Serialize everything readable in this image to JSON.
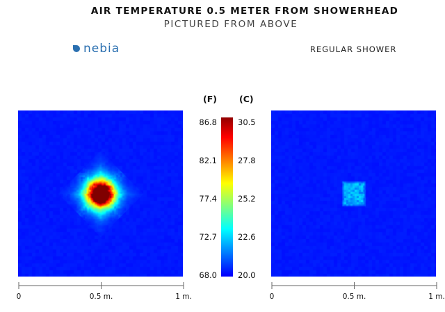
{
  "title": "AIR TEMPERATURE 0.5 METER FROM SHOWERHEAD",
  "subtitle": "PICTURED FROM ABOVE",
  "brand": {
    "name": "nebia",
    "color": "#2a6fb0"
  },
  "mode_label": "REGULAR SHOWER",
  "chart_data": [
    {
      "type": "heatmap",
      "colorscale": "jet",
      "x": {
        "ticks": [
          0,
          0.5,
          1
        ],
        "tick_labels": [
          "0",
          "0.5 m.",
          "1 m."
        ],
        "range": [
          0,
          1
        ]
      },
      "y": {
        "range": [
          0,
          1
        ]
      },
      "color_range_F": [
        68.0,
        86.8
      ],
      "color_range_C": [
        20.0,
        30.5
      ],
      "hotspot": {
        "center": [
          0.5,
          0.5
        ],
        "peak_F": 86.8,
        "peak_C": 30.5,
        "shape": "diamond"
      },
      "background_F": 68.0
    },
    {
      "type": "heatmap",
      "colorscale": "jet",
      "x": {
        "ticks": [
          0,
          0.5,
          1
        ],
        "tick_labels": [
          "0",
          "0.5 m.",
          "1 m."
        ],
        "range": [
          0,
          1
        ]
      },
      "y": {
        "range": [
          0,
          1
        ]
      },
      "color_range_F": [
        68.0,
        86.8
      ],
      "color_range_C": [
        20.0,
        30.5
      ],
      "hotspot": {
        "center": [
          0.5,
          0.5
        ],
        "peak_F": 72.0,
        "peak_C": 22.2,
        "shape": "square"
      },
      "background_F": 68.0
    }
  ],
  "colorbar": {
    "unit_f_label": "(F)",
    "unit_c_label": "(C)",
    "f_ticks": [
      "86.8",
      "82.1",
      "77.4",
      "72.7",
      "68.0"
    ],
    "c_ticks": [
      "30.5",
      "27.8",
      "25.2",
      "22.6",
      "20.0"
    ]
  },
  "colors": {
    "cold": "#0a1aff",
    "hot": "#e02010"
  }
}
